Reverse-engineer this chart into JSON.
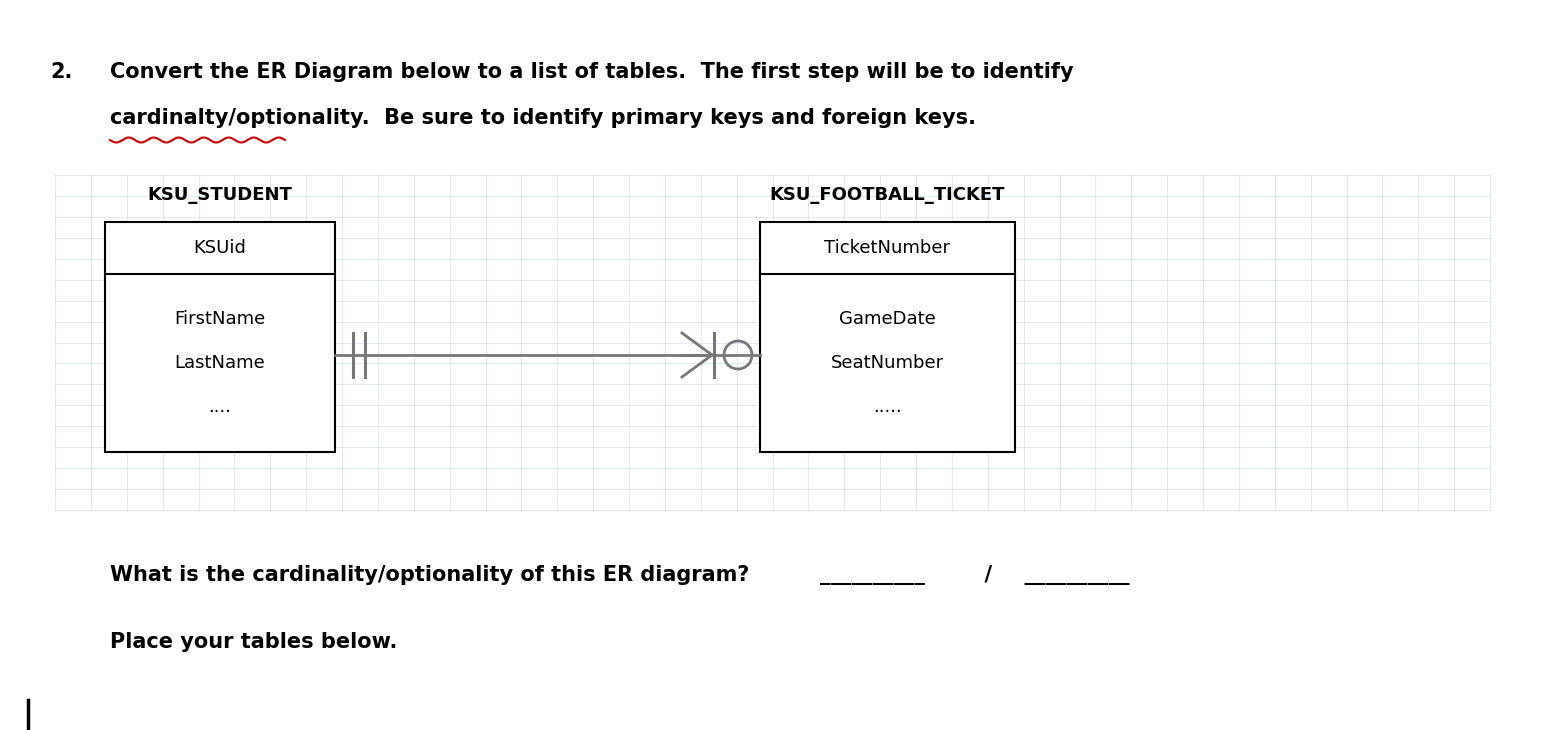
{
  "title_number": "2.",
  "title_line1": "Convert the ER Diagram below to a list of tables.  The first step will be to identify",
  "title_line2": "cardinalty/optionality.  Be sure to identify primary keys and foreign keys.",
  "background_color": "#ffffff",
  "grid_color": "#c8d4e8",
  "grid_alpha": 0.55,
  "entity1_label": "KSU_STUDENT",
  "entity1_pk": "KSUid",
  "entity1_attrs": [
    "FirstName",
    "LastName",
    "...."
  ],
  "entity2_label": "KSU_FOOTBALL_TICKET",
  "entity2_pk": "TicketNumber",
  "entity2_attrs": [
    "GameDate",
    "SeatNumber",
    "....."
  ],
  "question_text": "What is the cardinality/optionality of this ER diagram?",
  "blank1": "__________",
  "slash": "  /",
  "blank2": "  __________",
  "place_tables_text": "Place your tables below.",
  "underline_color": "#cc0000",
  "line_color": "#777777",
  "text_color": "#000000"
}
